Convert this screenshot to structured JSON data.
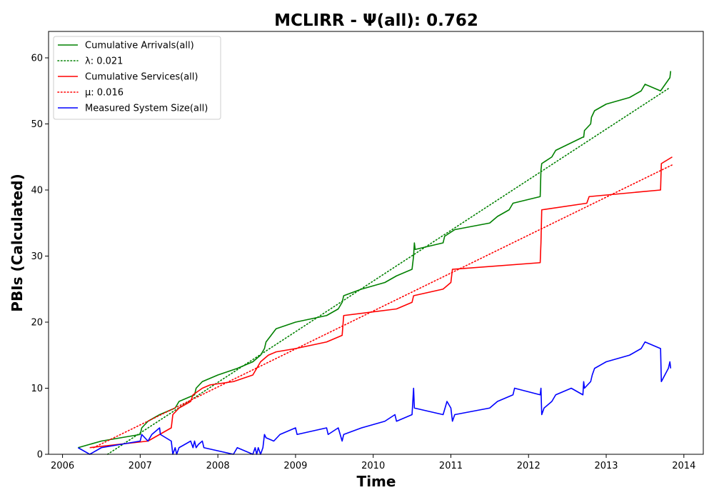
{
  "chart_data": {
    "type": "line",
    "title": "MCLIRR -  Ψ(all): 0.762",
    "xlabel": "Time",
    "ylabel": "PBIs (Calculated)",
    "xlim": [
      2005.82,
      2014.25
    ],
    "ylim": [
      0,
      64
    ],
    "xticks": [
      2006,
      2007,
      2008,
      2009,
      2010,
      2011,
      2012,
      2013,
      2014
    ],
    "xtick_labels": [
      "2006",
      "2007",
      "2008",
      "2009",
      "2010",
      "2011",
      "2012",
      "2013",
      "2014"
    ],
    "yticks": [
      0,
      10,
      20,
      30,
      40,
      50,
      60
    ],
    "ytick_labels": [
      "0",
      "10",
      "20",
      "30",
      "40",
      "50",
      "60"
    ],
    "grid": false,
    "legend_position": "top-left",
    "series": [
      {
        "name": "Cumulative Arrivals(all)",
        "color": "#008000",
        "style": "solid",
        "x": [
          2006.2,
          2006.5,
          2007.0,
          2007.02,
          2007.1,
          2007.25,
          2007.45,
          2007.5,
          2007.7,
          2007.72,
          2007.8,
          2008.0,
          2008.25,
          2008.45,
          2008.55,
          2008.6,
          2008.62,
          2008.75,
          2009.0,
          2009.4,
          2009.55,
          2009.6,
          2009.62,
          2009.85,
          2010.15,
          2010.3,
          2010.5,
          2010.52,
          2010.53,
          2010.54,
          2010.9,
          2010.92,
          2011.05,
          2011.5,
          2011.6,
          2011.75,
          2011.8,
          2012.15,
          2012.16,
          2012.17,
          2012.3,
          2012.35,
          2012.7,
          2012.71,
          2012.72,
          2012.8,
          2012.81,
          2012.85,
          2013.0,
          2013.3,
          2013.45,
          2013.5,
          2013.7,
          2013.82,
          2013.83
        ],
        "y": [
          1,
          2,
          3,
          4,
          5,
          6,
          7,
          8,
          9,
          10,
          11,
          12,
          13,
          14,
          15,
          16,
          17,
          19,
          20,
          21,
          22,
          23,
          24,
          25,
          26,
          27,
          28,
          30,
          32,
          31,
          32,
          33,
          34,
          35,
          36,
          37,
          38,
          39,
          43,
          44,
          45,
          46,
          48,
          48,
          49,
          50,
          51,
          52,
          53,
          54,
          55,
          56,
          55,
          57,
          58
        ]
      },
      {
        "name": "λ: 0.021",
        "color": "#008000",
        "style": "dotted",
        "x": [
          2006.58,
          2013.82
        ],
        "y": [
          0,
          55.5
        ]
      },
      {
        "name": "Cumulative Services(all)",
        "color": "#ff0000",
        "style": "solid",
        "x": [
          2006.35,
          2007.1,
          2007.4,
          2007.42,
          2007.5,
          2007.65,
          2007.68,
          2007.8,
          2007.9,
          2008.2,
          2008.45,
          2008.5,
          2008.55,
          2008.65,
          2008.75,
          2009.0,
          2009.4,
          2009.6,
          2009.62,
          2010.3,
          2010.5,
          2010.52,
          2010.9,
          2011.0,
          2011.02,
          2012.15,
          2012.16,
          2012.17,
          2012.75,
          2012.78,
          2013.7,
          2013.71,
          2013.85
        ],
        "y": [
          1,
          2,
          4,
          6,
          7,
          8,
          9,
          10,
          10.5,
          11,
          12,
          13,
          14,
          15,
          15.5,
          16,
          17,
          18,
          21,
          22,
          23,
          24,
          25,
          26,
          28,
          29,
          32,
          37,
          38,
          39,
          40,
          44,
          45
        ]
      },
      {
        "name": "μ: 0.016",
        "color": "#ff0000",
        "style": "dotted",
        "x": [
          2006.4,
          2013.85
        ],
        "y": [
          1.0,
          43.8
        ]
      },
      {
        "name": "Measured System Size(all)",
        "color": "#0000ff",
        "style": "solid",
        "x": [
          2006.2,
          2006.35,
          2006.5,
          2007.0,
          2007.02,
          2007.1,
          2007.15,
          2007.25,
          2007.26,
          2007.4,
          2007.42,
          2007.45,
          2007.47,
          2007.5,
          2007.65,
          2007.68,
          2007.7,
          2007.72,
          2007.75,
          2007.8,
          2007.82,
          2008.2,
          2008.25,
          2008.45,
          2008.48,
          2008.5,
          2008.52,
          2008.55,
          2008.58,
          2008.6,
          2008.62,
          2008.72,
          2008.8,
          2009.0,
          2009.02,
          2009.4,
          2009.42,
          2009.55,
          2009.6,
          2009.62,
          2009.85,
          2010.15,
          2010.28,
          2010.3,
          2010.5,
          2010.52,
          2010.53,
          2010.9,
          2010.95,
          2011.0,
          2011.02,
          2011.05,
          2011.5,
          2011.6,
          2011.8,
          2011.82,
          2012.15,
          2012.16,
          2012.17,
          2012.2,
          2012.3,
          2012.35,
          2012.55,
          2012.7,
          2012.71,
          2012.72,
          2012.8,
          2012.82,
          2012.85,
          2013.0,
          2013.3,
          2013.45,
          2013.5,
          2013.7,
          2013.71,
          2013.8,
          2013.82,
          2013.83
        ],
        "y": [
          1,
          0,
          1,
          2,
          3,
          2,
          3,
          4,
          3,
          2,
          0,
          1,
          0,
          1,
          2,
          1,
          2,
          1,
          1.5,
          2,
          1,
          0,
          1,
          0,
          1,
          0,
          1,
          0,
          1,
          3,
          2.5,
          2,
          3,
          4,
          3,
          4,
          3,
          4,
          2,
          3,
          4,
          5,
          6,
          5,
          6,
          10,
          7,
          6,
          8,
          7,
          5,
          6,
          7,
          8,
          9,
          10,
          9,
          10,
          6,
          7,
          8,
          9,
          10,
          9,
          11,
          10,
          11,
          12,
          13,
          14,
          15,
          16,
          17,
          16,
          11,
          13,
          14,
          13
        ]
      }
    ]
  }
}
